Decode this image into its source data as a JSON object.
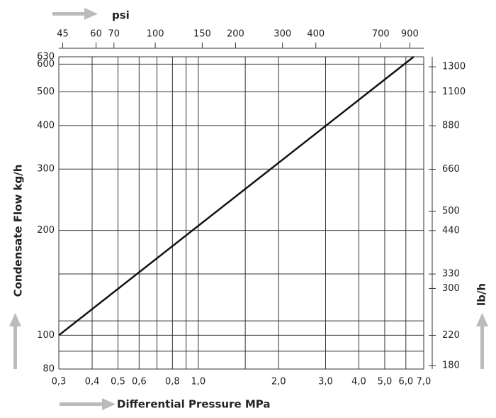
{
  "chart_data": {
    "type": "line",
    "log_x": true,
    "log_y": true,
    "grid": true,
    "x_label": "Differential Pressure MPa",
    "y_label": "Condensate Flow kg/h",
    "x2_label": "psi",
    "y2_label": "lb/h",
    "xlim": [
      0.3,
      7.0
    ],
    "xticks": [
      {
        "value": 0.3,
        "label": "0,3"
      },
      {
        "value": 0.4,
        "label": "0,4"
      },
      {
        "value": 0.5,
        "label": "0,5"
      },
      {
        "value": 0.6,
        "label": "0,6"
      },
      {
        "value": 0.8,
        "label": "0,8"
      },
      {
        "value": 1.0,
        "label": "1,0"
      },
      {
        "value": 2.0,
        "label": "2,0"
      },
      {
        "value": 3.0,
        "label": "3,0"
      },
      {
        "value": 4.0,
        "label": "4,0"
      },
      {
        "value": 5.0,
        "label": "5,0"
      },
      {
        "value": 6.0,
        "label": "6,0"
      },
      {
        "value": 7.0,
        "label": "7,0"
      }
    ],
    "xminor": [
      0.7,
      0.9,
      1.5
    ],
    "x2lim": [
      43.5,
      1015
    ],
    "x2ticks": [
      45,
      60,
      70,
      100,
      150,
      200,
      300,
      400,
      700,
      900
    ],
    "ylim": [
      80,
      630
    ],
    "yticks": [
      80,
      100,
      200,
      300,
      400,
      500,
      600,
      630
    ],
    "yminor": [
      90,
      110,
      150
    ],
    "y2lim": [
      176,
      1389
    ],
    "y2ticks": [
      180,
      220,
      300,
      330,
      440,
      500,
      660,
      880,
      1100,
      1300
    ],
    "series": [
      {
        "color": "#111111",
        "x": [
          0.3,
          6.42
        ],
        "values": [
          100,
          630
        ]
      }
    ]
  }
}
